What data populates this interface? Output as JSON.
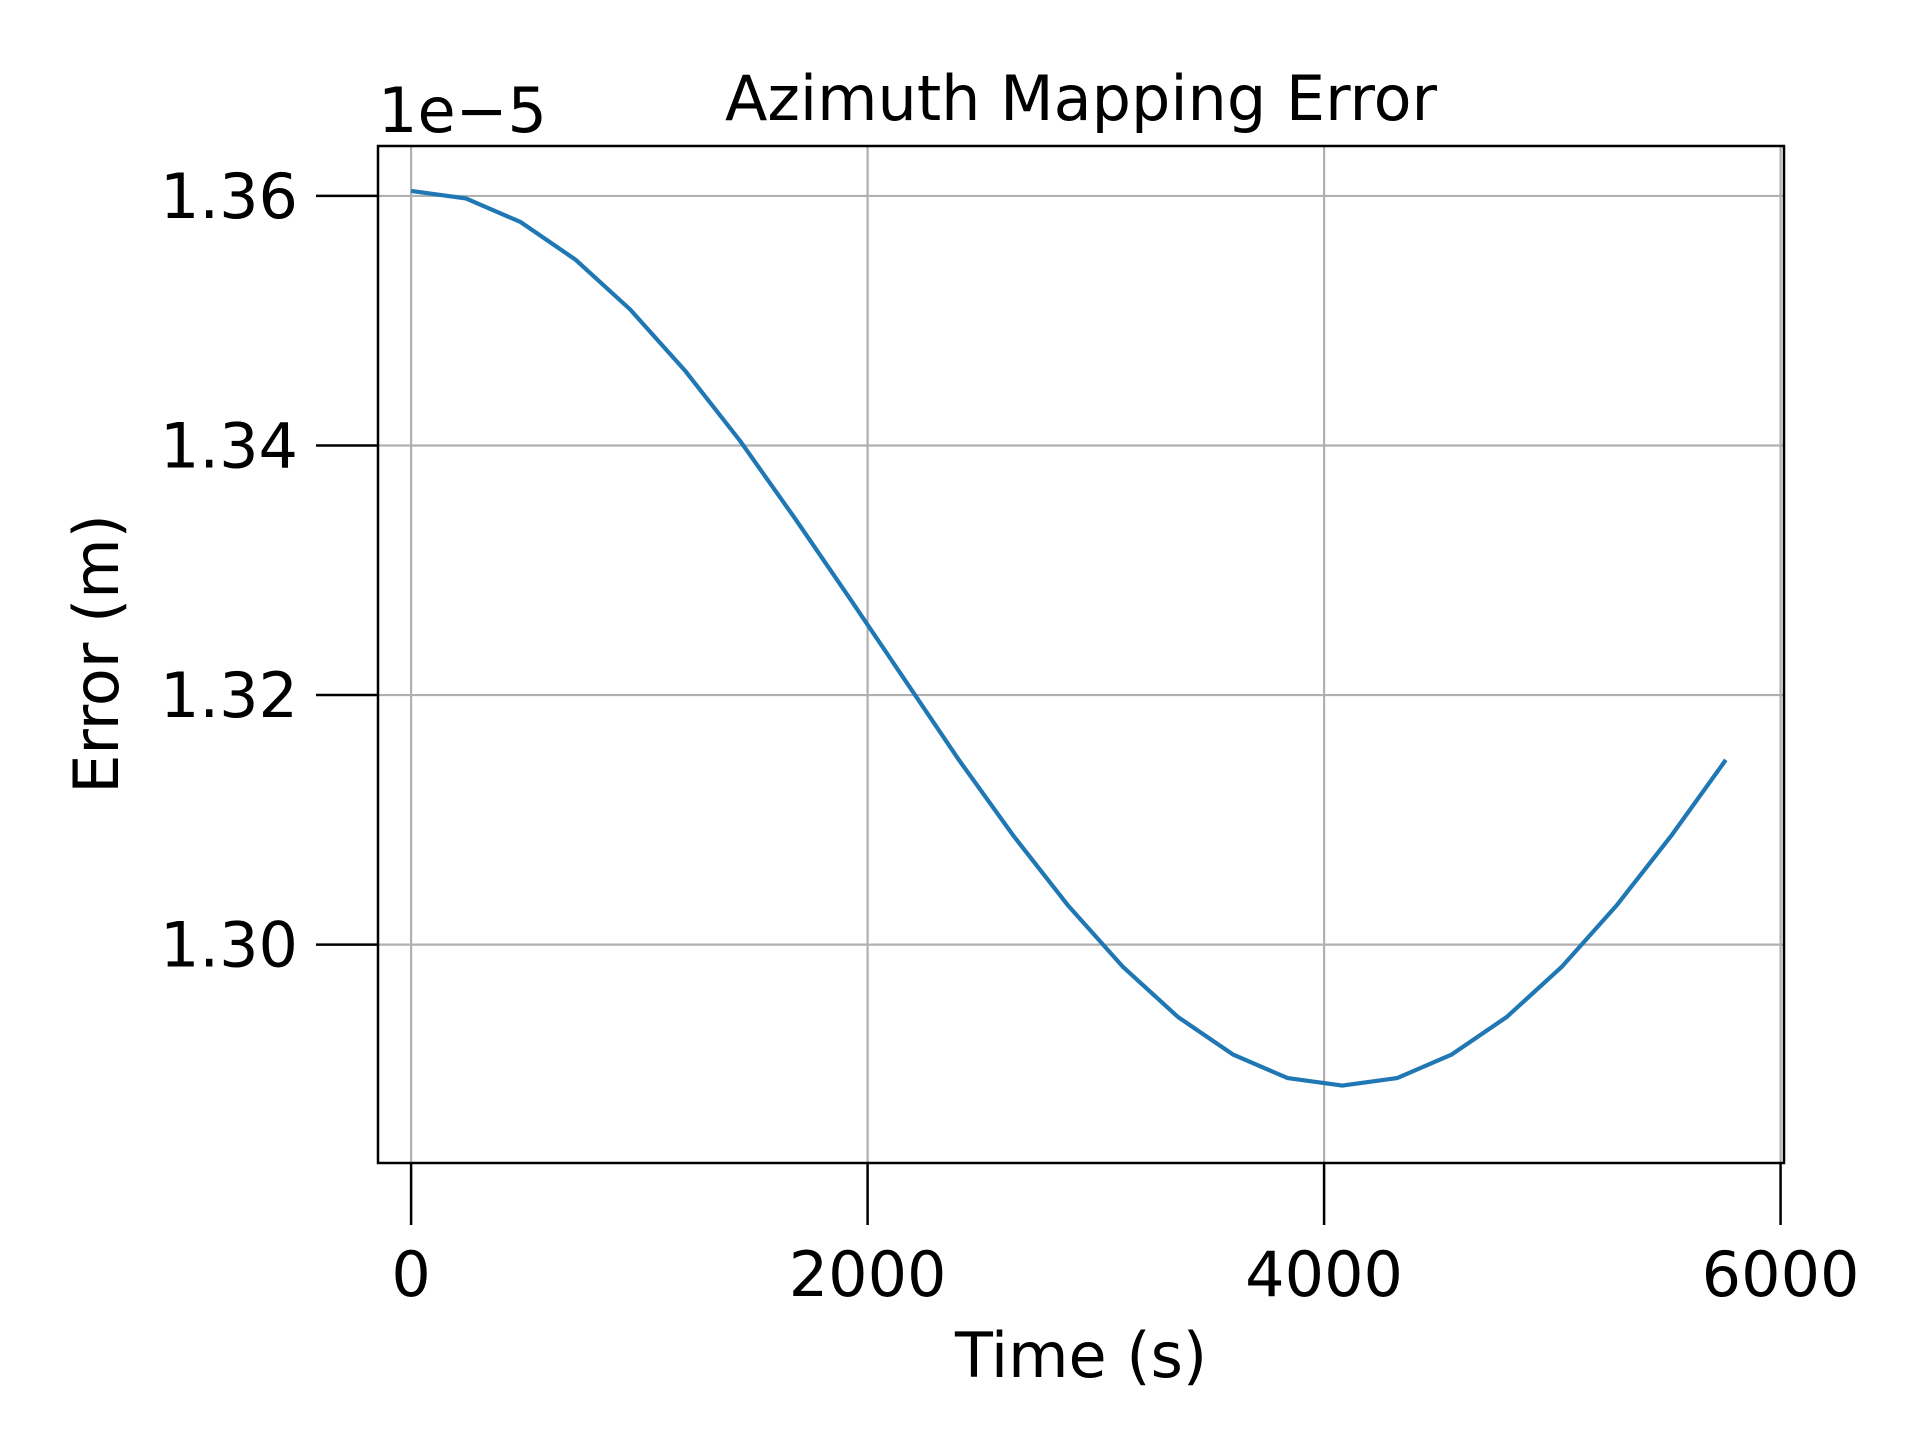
{
  "chart_data": {
    "type": "line",
    "title": "Azimuth Mapping Error",
    "xlabel": "Time (s)",
    "ylabel": "Error (m)",
    "y_offset_label": "1e−5",
    "xlim": [
      -145,
      6015
    ],
    "ylim": [
      1.2825,
      1.364
    ],
    "x_ticks": [
      0,
      2000,
      4000,
      6000
    ],
    "x_tick_labels": [
      "0",
      "2000",
      "4000",
      "6000"
    ],
    "y_ticks": [
      1.3,
      1.32,
      1.34,
      1.36
    ],
    "y_tick_labels": [
      "1.30",
      "1.32",
      "1.34",
      "1.36"
    ],
    "grid": true,
    "line_color": "#1f77b4",
    "grid_color": "#b0b0b0",
    "series": [
      {
        "x": [
          0,
          240,
          480,
          720,
          960,
          1200,
          1440,
          1680,
          1920,
          2160,
          2400,
          2640,
          2880,
          3120,
          3360,
          3600,
          3840,
          4080,
          4320,
          4560,
          4800,
          5040,
          5280,
          5520,
          5760
        ],
        "values": [
          1.3604,
          1.3598,
          1.3579,
          1.3549,
          1.3509,
          1.346,
          1.3404,
          1.3342,
          1.3278,
          1.3213,
          1.3148,
          1.3087,
          1.3031,
          1.2982,
          1.2942,
          1.2912,
          1.2893,
          1.2887,
          1.2893,
          1.2912,
          1.2942,
          1.2982,
          1.3031,
          1.3087,
          1.3148
        ]
      }
    ]
  }
}
